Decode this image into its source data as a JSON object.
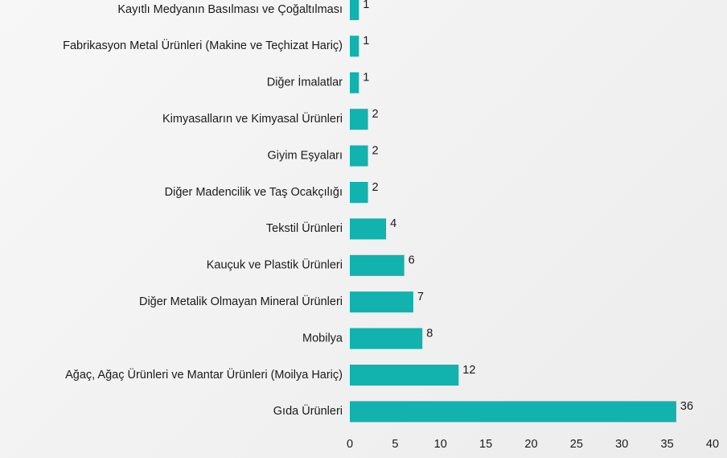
{
  "chart_data": {
    "type": "barh",
    "categories": [
      "Kayıtlı Medyanın Basılması ve Çoğaltılması",
      "Fabrikasyon Metal Ürünleri (Makine ve Teçhizat Hariç)",
      "Diğer İmalatlar",
      "Kimyasalların ve Kimyasal Ürünleri",
      "Giyim Eşyaları",
      "Diğer Madencilik ve Taş Ocakçılığı",
      "Tekstil Ürünleri",
      "Kauçuk ve Plastik Ürünleri",
      "Diğer Metalik Olmayan Mineral Ürünleri",
      "Mobilya",
      "Ağaç, Ağaç Ürünleri ve Mantar Ürünleri (Moilya Hariç)",
      "Gıda Ürünleri"
    ],
    "values": [
      1,
      1,
      1,
      2,
      2,
      2,
      4,
      6,
      7,
      8,
      12,
      36
    ],
    "color": "#12b2ae",
    "xlim": [
      0,
      40
    ],
    "xticks": [
      0,
      5,
      10,
      15,
      20,
      25,
      30,
      35,
      40
    ],
    "grid": false
  }
}
